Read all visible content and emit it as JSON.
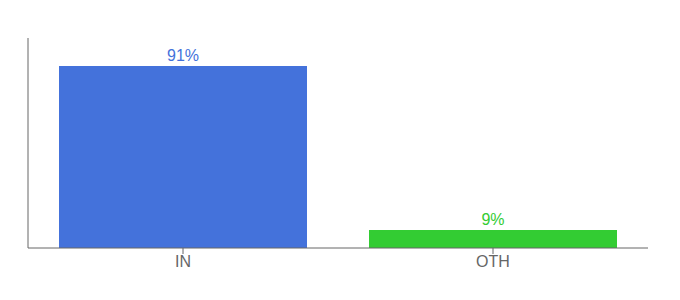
{
  "chart_data": {
    "type": "bar",
    "categories": [
      "IN",
      "OTH"
    ],
    "values": [
      91,
      9
    ],
    "value_labels": [
      "91%",
      "9%"
    ],
    "colors": [
      "#4472db",
      "#33cc33"
    ],
    "ylim": [
      0,
      105
    ],
    "yticks": [],
    "data_labels": true,
    "tick_labels": "x",
    "grid": false
  }
}
